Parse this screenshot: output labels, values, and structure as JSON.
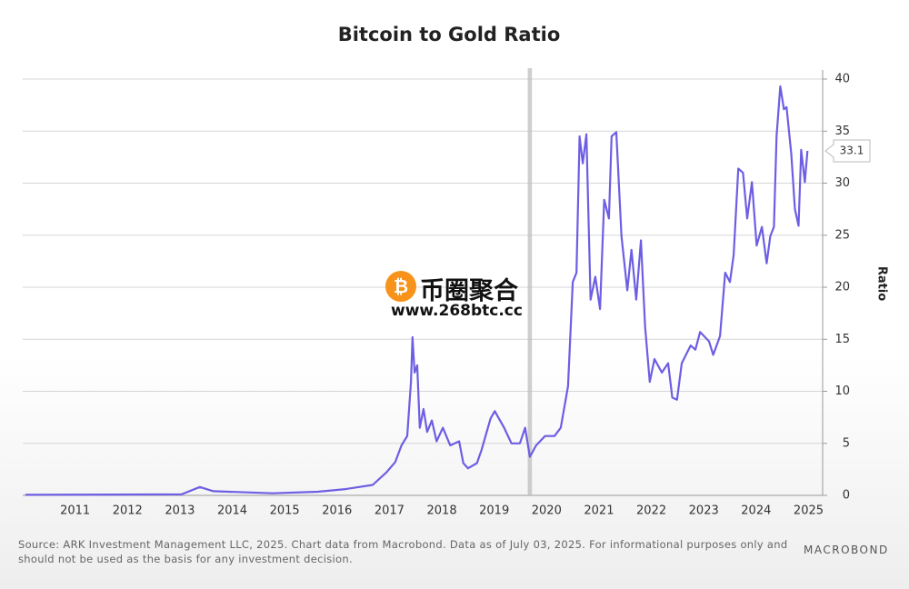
{
  "chart_data": {
    "type": "line",
    "title": "Bitcoin to Gold Ratio",
    "y_label": "Ratio",
    "x": [
      2010.55,
      2013.53,
      2013.88,
      2014.14,
      2015.27,
      2016.13,
      2016.66,
      2017.18,
      2017.44,
      2017.61,
      2017.73,
      2017.84,
      2017.91,
      2017.94,
      2017.98,
      2018.03,
      2018.08,
      2018.15,
      2018.22,
      2018.31,
      2018.4,
      2018.52,
      2018.66,
      2018.83,
      2018.91,
      2019.0,
      2019.17,
      2019.26,
      2019.43,
      2019.51,
      2019.69,
      2019.83,
      2019.99,
      2020.09,
      2020.18,
      2020.3,
      2020.47,
      2020.65,
      2020.77,
      2020.91,
      2021.0,
      2021.07,
      2021.13,
      2021.19,
      2021.26,
      2021.34,
      2021.43,
      2021.52,
      2021.6,
      2021.69,
      2021.74,
      2021.83,
      2021.93,
      2022.04,
      2022.12,
      2022.21,
      2022.3,
      2022.38,
      2022.47,
      2022.56,
      2022.7,
      2022.82,
      2022.9,
      2022.99,
      2023.08,
      2023.25,
      2023.34,
      2023.43,
      2023.6,
      2023.68,
      2023.81,
      2023.91,
      2024.0,
      2024.07,
      2024.16,
      2024.25,
      2024.33,
      2024.42,
      2024.51,
      2024.61,
      2024.7,
      2024.77,
      2024.84,
      2024.89,
      2024.96,
      2025.03,
      2025.08,
      2025.17,
      2025.24,
      2025.31,
      2025.36,
      2025.43,
      2025.48
    ],
    "series": [
      {
        "color": "#6d5ee3",
        "values": [
          0.05,
          0.1,
          0.8,
          0.4,
          0.2,
          0.35,
          0.6,
          1.0,
          2.2,
          3.2,
          4.8,
          5.7,
          10.9,
          15.2,
          11.8,
          12.5,
          6.5,
          8.3,
          6.1,
          7.2,
          5.2,
          6.5,
          4.8,
          5.2,
          3.1,
          2.6,
          3.1,
          4.4,
          7.4,
          8.1,
          6.5,
          5.0,
          5.0,
          6.5,
          3.7,
          4.8,
          5.7,
          5.7,
          6.5,
          10.5,
          20.5,
          21.4,
          34.5,
          31.9,
          34.7,
          18.8,
          21.0,
          17.9,
          28.4,
          26.6,
          34.5,
          34.9,
          24.9,
          19.7,
          23.6,
          18.8,
          24.5,
          16.2,
          10.9,
          13.1,
          11.8,
          12.7,
          9.4,
          9.2,
          12.7,
          14.4,
          14.0,
          15.7,
          14.8,
          13.5,
          15.3,
          21.4,
          20.5,
          23.1,
          31.4,
          31.0,
          26.6,
          30.1,
          24.0,
          25.8,
          22.3,
          24.9,
          25.8,
          34.5,
          39.3,
          37.1,
          37.3,
          32.8,
          27.5,
          25.9,
          33.2,
          30.1,
          33.1
        ]
      }
    ],
    "last_value_label": "33.1",
    "shaded_x": [
      2020.14,
      2020.22
    ],
    "xlim": [
      2010.5,
      2025.7
    ],
    "xticks": [
      {
        "value": 2011.5,
        "label": "2011"
      },
      {
        "value": 2012.5,
        "label": "2012"
      },
      {
        "value": 2013.5,
        "label": "2013"
      },
      {
        "value": 2014.5,
        "label": "2014"
      },
      {
        "value": 2015.5,
        "label": "2015"
      },
      {
        "value": 2016.5,
        "label": "2016"
      },
      {
        "value": 2017.5,
        "label": "2017"
      },
      {
        "value": 2018.5,
        "label": "2018"
      },
      {
        "value": 2019.5,
        "label": "2019"
      },
      {
        "value": 2020.5,
        "label": "2020"
      },
      {
        "value": 2021.5,
        "label": "2021"
      },
      {
        "value": 2022.5,
        "label": "2022"
      },
      {
        "value": 2023.5,
        "label": "2023"
      },
      {
        "value": 2024.5,
        "label": "2024"
      },
      {
        "value": 2025.5,
        "label": "2025"
      }
    ],
    "ylim": [
      0,
      40
    ],
    "yticks": [
      0,
      5,
      10,
      15,
      20,
      25,
      30,
      35,
      40
    ],
    "grid": true,
    "y_axis_side": "right",
    "source": [
      "Source: ARK Investment Management LLC, 2025. Chart data from Macrobond. Data as of July 03, 2025. For informational purposes only and",
      "should not be used as the basis for any investment decision."
    ],
    "logo": "MACROBOND"
  },
  "watermark": {
    "name": "币圈聚合",
    "url": "www.268btc.cc"
  }
}
